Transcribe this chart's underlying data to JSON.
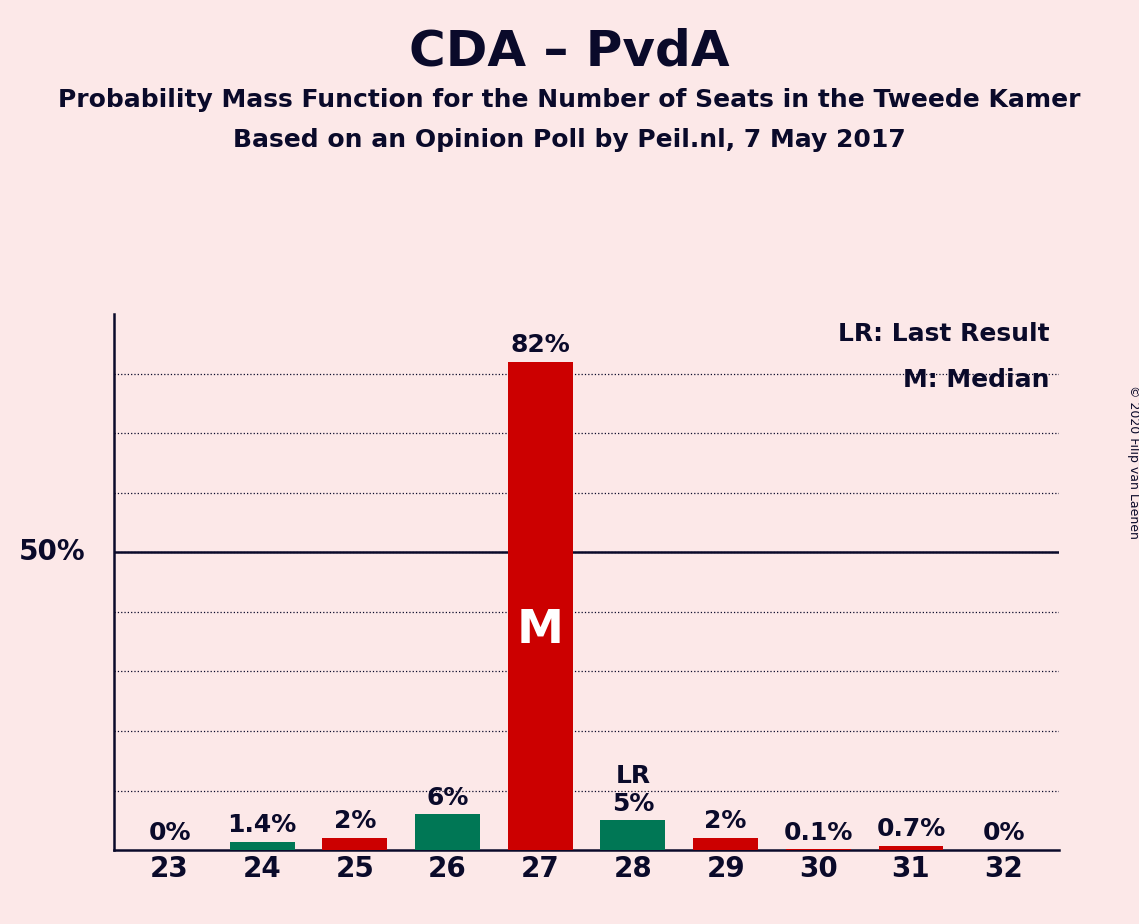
{
  "title": "CDA – PvdA",
  "subtitle1": "Probability Mass Function for the Number of Seats in the Tweede Kamer",
  "subtitle2": "Based on an Opinion Poll by Peil.nl, 7 May 2017",
  "copyright": "© 2020 Filip van Laenen",
  "categories": [
    23,
    24,
    25,
    26,
    27,
    28,
    29,
    30,
    31,
    32
  ],
  "values": [
    0.0,
    1.4,
    2.0,
    6.0,
    82.0,
    5.0,
    2.0,
    0.1,
    0.7,
    0.0
  ],
  "bar_colors": [
    "#cc0000",
    "#007755",
    "#cc0000",
    "#007755",
    "#cc0000",
    "#007755",
    "#cc0000",
    "#cc0000",
    "#cc0000",
    "#cc0000"
  ],
  "labels": [
    "0%",
    "1.4%",
    "2%",
    "6%",
    "82%",
    "5%",
    "2%",
    "0.1%",
    "0.7%",
    "0%"
  ],
  "median_bar": 27,
  "lr_bar": 28,
  "median_label": "M",
  "lr_label": "LR",
  "legend_lr": "LR: Last Result",
  "legend_m": "M: Median",
  "background_color": "#fce8e8",
  "bar_width": 0.7,
  "ylim": [
    0,
    90
  ],
  "fifty_line": 50,
  "title_fontsize": 36,
  "subtitle_fontsize": 18,
  "axis_fontsize": 20,
  "label_fontsize": 18,
  "legend_fontsize": 18,
  "grid_lines": [
    10,
    20,
    30,
    40,
    50,
    60,
    70,
    80
  ]
}
